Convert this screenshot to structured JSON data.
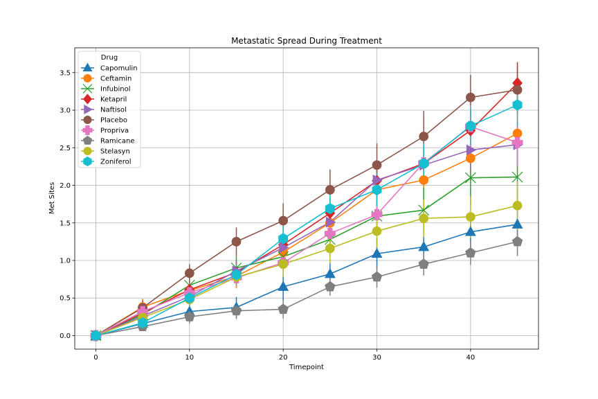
{
  "chart_data": {
    "type": "line",
    "title": "Metastatic Spread During Treatment",
    "xlabel": "Timepoint",
    "ylabel": "Met Sites",
    "xlim": [
      -2.25,
      47.25
    ],
    "ylim": [
      -0.18,
      3.83
    ],
    "xticks": [
      0,
      10,
      20,
      30,
      40
    ],
    "yticks": [
      0.0,
      0.5,
      1.0,
      1.5,
      2.0,
      2.5,
      3.0,
      3.5
    ],
    "grid": true,
    "legend": {
      "title": "Drug",
      "placement": "upper-left"
    },
    "x": [
      0,
      5,
      10,
      15,
      20,
      25,
      30,
      35,
      40,
      45
    ],
    "series": [
      {
        "name": "Capomulin",
        "color": "#1f77b4",
        "marker": "triangle-up",
        "values": [
          0.0,
          0.16,
          0.32,
          0.375,
          0.65,
          0.82,
          1.09,
          1.18,
          1.38,
          1.48
        ],
        "errors": [
          0.0,
          0.07,
          0.1,
          0.14,
          0.18,
          0.19,
          0.21,
          0.24,
          0.26,
          0.2
        ]
      },
      {
        "name": "Ceftamin",
        "color": "#ff7f0e",
        "marker": "circle",
        "values": [
          0.0,
          0.38,
          0.6,
          0.79,
          1.11,
          1.5,
          1.94,
          2.07,
          2.36,
          2.69
        ],
        "errors": [
          0.0,
          0.11,
          0.12,
          0.16,
          0.17,
          0.2,
          0.26,
          0.28,
          0.3,
          0.4
        ]
      },
      {
        "name": "Infubinol",
        "color": "#2ca02c",
        "marker": "x",
        "values": [
          0.0,
          0.28,
          0.67,
          0.9,
          1.05,
          1.28,
          1.59,
          1.67,
          2.1,
          2.11
        ],
        "errors": [
          0.0,
          0.09,
          0.13,
          0.16,
          0.19,
          0.22,
          0.26,
          0.3,
          0.37,
          0.4
        ]
      },
      {
        "name": "Ketapril",
        "color": "#d62728",
        "marker": "diamond",
        "values": [
          0.0,
          0.3,
          0.61,
          0.84,
          1.21,
          1.63,
          2.06,
          2.29,
          2.73,
          3.36
        ],
        "errors": [
          0.0,
          0.1,
          0.12,
          0.14,
          0.17,
          0.2,
          0.22,
          0.24,
          0.26,
          0.28
        ]
      },
      {
        "name": "Naftisol",
        "color": "#9467bd",
        "marker": "triangle-right",
        "values": [
          0.0,
          0.26,
          0.52,
          0.86,
          1.17,
          1.51,
          2.07,
          2.27,
          2.47,
          2.54
        ],
        "errors": [
          0.0,
          0.09,
          0.13,
          0.14,
          0.17,
          0.19,
          0.22,
          0.25,
          0.27,
          0.29
        ]
      },
      {
        "name": "Placebo",
        "color": "#8c564b",
        "marker": "circle",
        "values": [
          0.0,
          0.37,
          0.83,
          1.25,
          1.53,
          1.94,
          2.27,
          2.65,
          3.17,
          3.27
        ],
        "errors": [
          0.0,
          0.1,
          0.12,
          0.19,
          0.23,
          0.27,
          0.29,
          0.34,
          0.3,
          0.31
        ]
      },
      {
        "name": "Propriva",
        "color": "#e377c2",
        "marker": "plus",
        "values": [
          0.0,
          0.32,
          0.57,
          0.77,
          0.97,
          1.36,
          1.61,
          2.3,
          2.78,
          2.57
        ],
        "errors": [
          0.0,
          0.09,
          0.13,
          0.14,
          0.16,
          0.19,
          0.21,
          0.25,
          0.28,
          0.31
        ]
      },
      {
        "name": "Ramicane",
        "color": "#7f7f7f",
        "marker": "pentagon",
        "values": [
          0.0,
          0.12,
          0.25,
          0.33,
          0.35,
          0.65,
          0.78,
          0.95,
          1.1,
          1.25
        ],
        "errors": [
          0.0,
          0.06,
          0.09,
          0.11,
          0.12,
          0.12,
          0.14,
          0.15,
          0.16,
          0.19
        ]
      },
      {
        "name": "Stelasyn",
        "color": "#bcbd22",
        "marker": "circle",
        "values": [
          0.0,
          0.24,
          0.48,
          0.78,
          0.95,
          1.16,
          1.39,
          1.56,
          1.58,
          1.73
        ],
        "errors": [
          0.0,
          0.09,
          0.11,
          0.15,
          0.17,
          0.2,
          0.22,
          0.25,
          0.28,
          0.32
        ]
      },
      {
        "name": "Zoniferol",
        "color": "#17becf",
        "marker": "hexagon",
        "values": [
          0.0,
          0.17,
          0.5,
          0.81,
          1.29,
          1.69,
          1.94,
          2.29,
          2.79,
          3.07
        ],
        "errors": [
          0.0,
          0.07,
          0.1,
          0.14,
          0.17,
          0.19,
          0.22,
          0.25,
          0.26,
          0.29
        ]
      }
    ]
  }
}
